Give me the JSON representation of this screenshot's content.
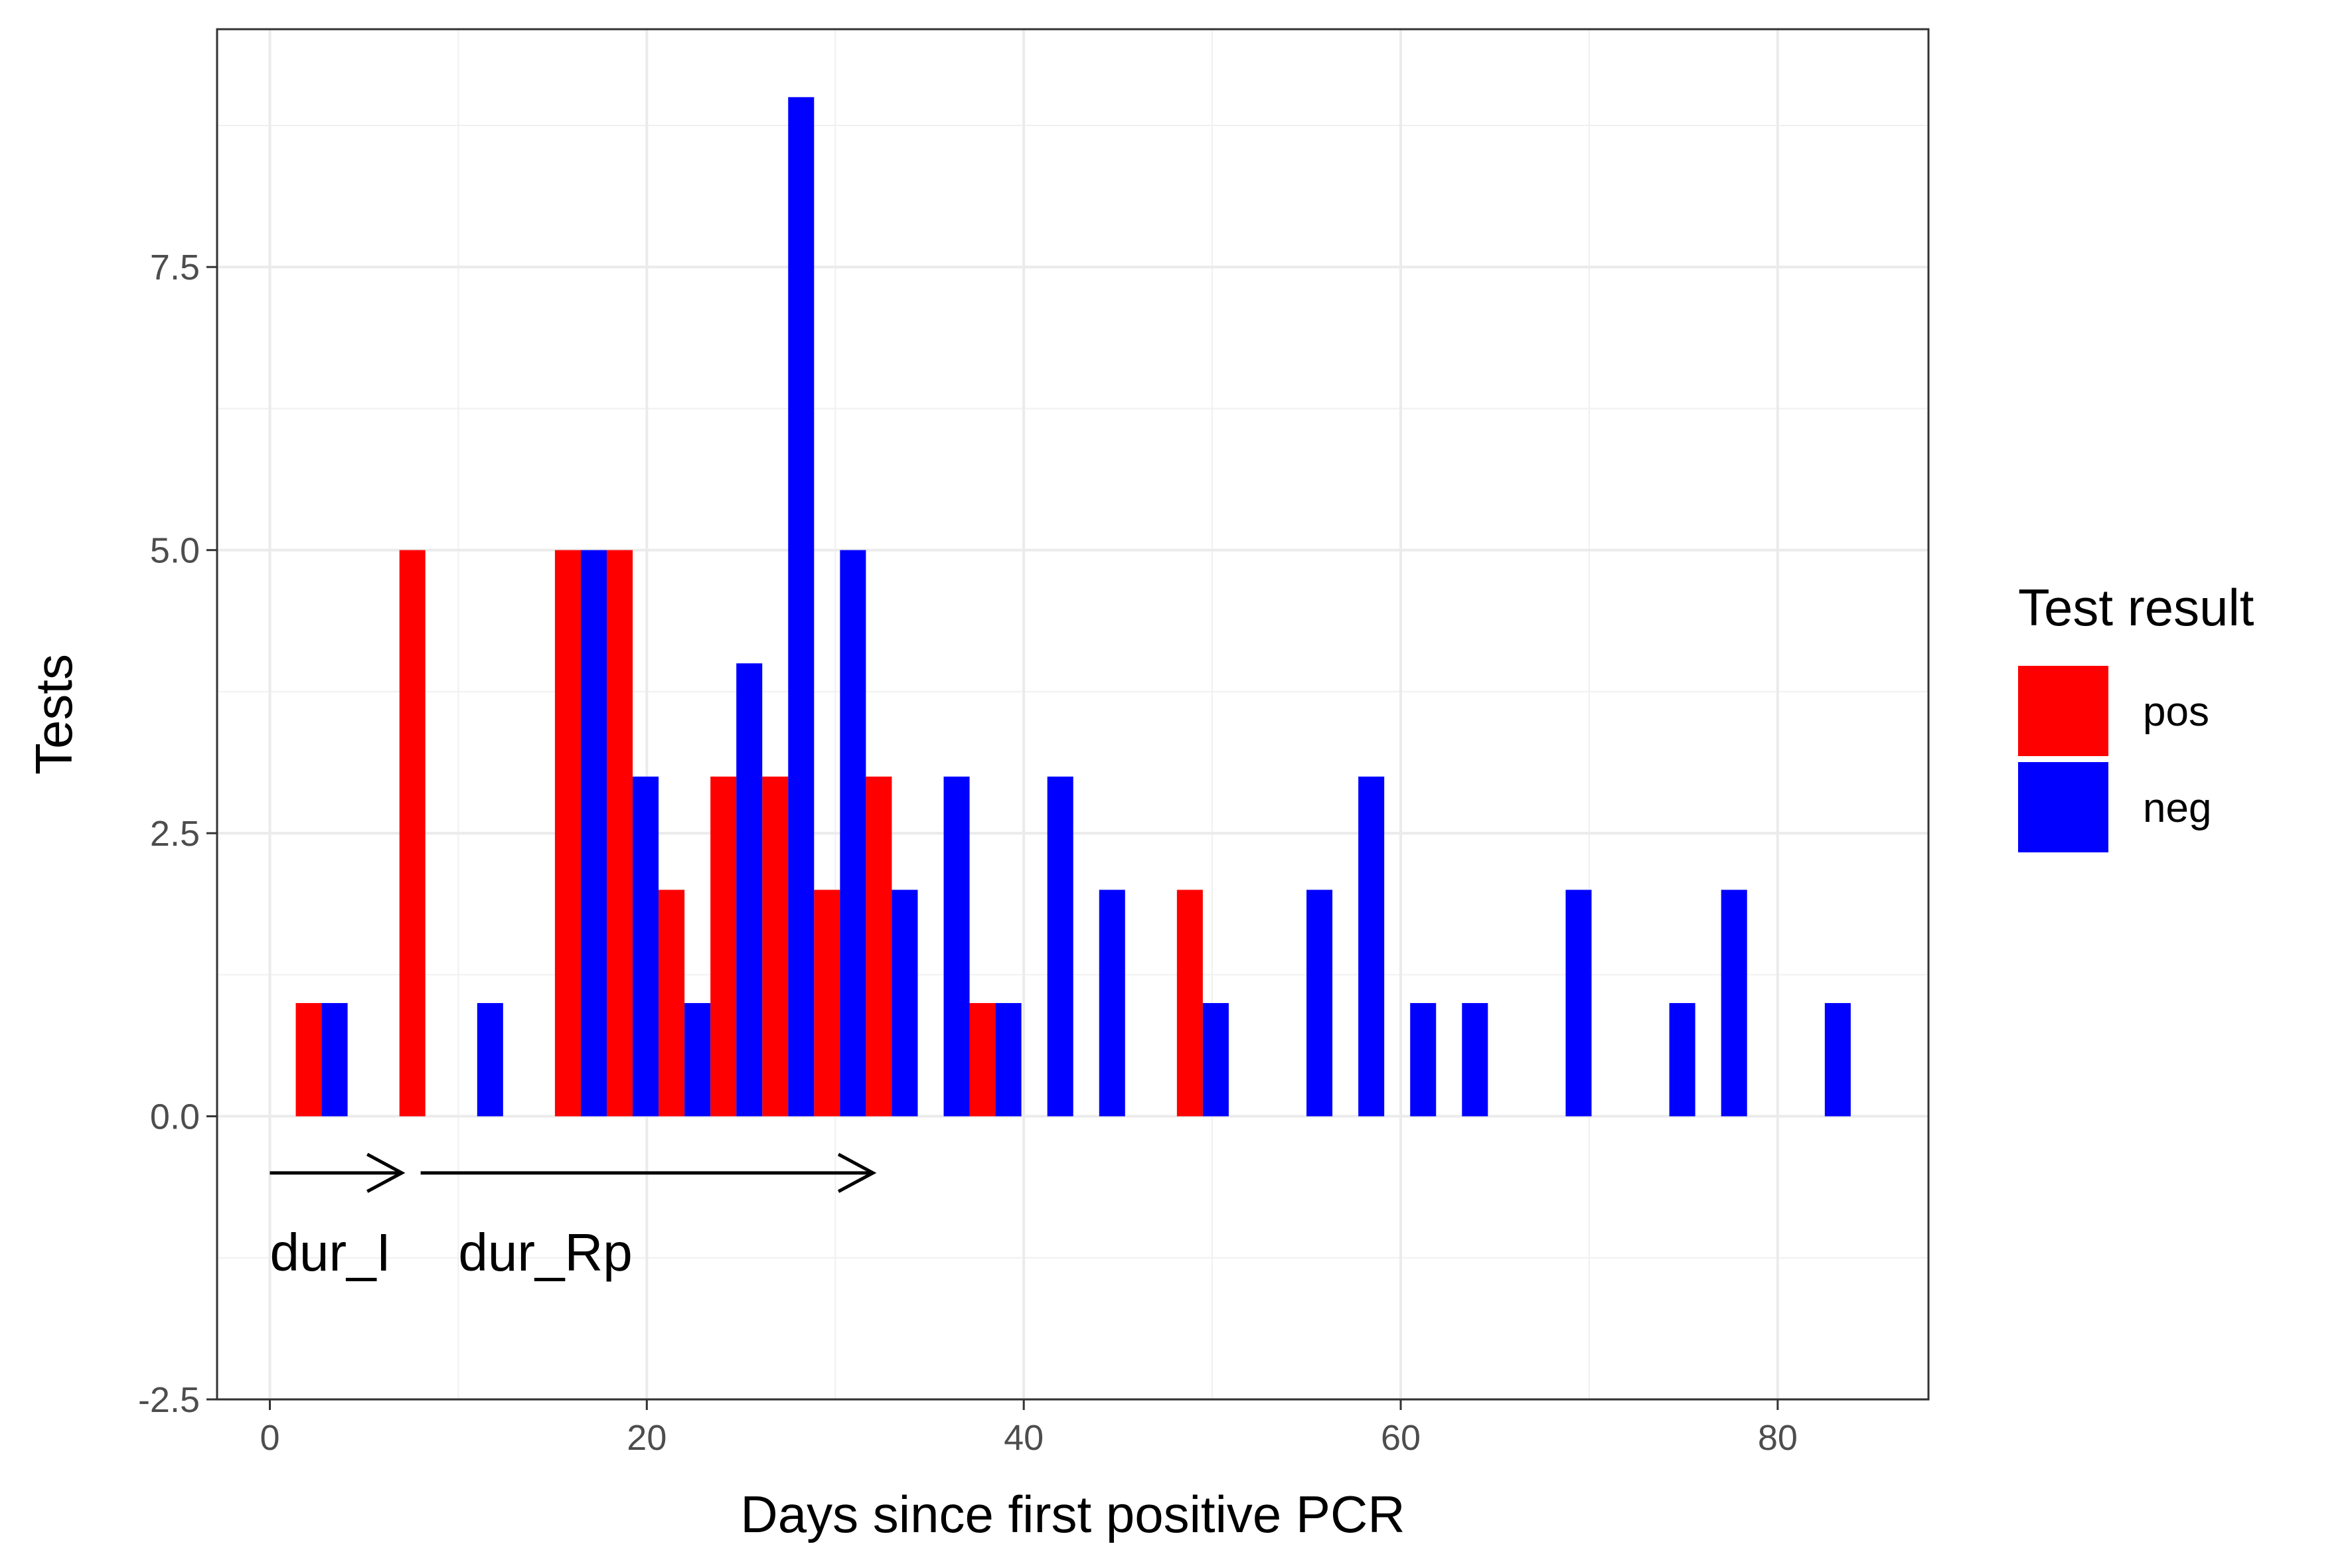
{
  "chart_data": {
    "type": "bar",
    "xlabel": "Days since first positive PCR",
    "ylabel": "Tests",
    "xlim": [
      -2.8,
      88
    ],
    "ylim": [
      -2.5,
      9.6
    ],
    "x_ticks": [
      0,
      20,
      40,
      60,
      80
    ],
    "x_tick_labels": [
      "0",
      "20",
      "40",
      "60",
      "80"
    ],
    "y_ticks": [
      -2.5,
      0.0,
      2.5,
      5.0,
      7.5
    ],
    "y_tick_labels": [
      "-2.5",
      "0.0",
      "2.5",
      "5.0",
      "7.5"
    ],
    "grid": true,
    "bin_width": 2.75,
    "legend": {
      "title": "Test result",
      "position": "right",
      "entries": [
        {
          "label": "pos",
          "color": "#ff0000"
        },
        {
          "label": "neg",
          "color": "#0000ff"
        }
      ]
    },
    "series": [
      {
        "name": "pos",
        "color": "#ff0000",
        "points": [
          {
            "x": 2.75,
            "y": 1
          },
          {
            "x": 8.25,
            "y": 5
          },
          {
            "x": 16.5,
            "y": 5
          },
          {
            "x": 19.25,
            "y": 5
          },
          {
            "x": 22,
            "y": 2
          },
          {
            "x": 24.75,
            "y": 3
          },
          {
            "x": 27.5,
            "y": 3
          },
          {
            "x": 30.25,
            "y": 2
          },
          {
            "x": 33,
            "y": 3
          },
          {
            "x": 38.5,
            "y": 1
          },
          {
            "x": 49.5,
            "y": 2
          }
        ]
      },
      {
        "name": "neg",
        "color": "#0000ff",
        "points": [
          {
            "x": 2.75,
            "y": 1
          },
          {
            "x": 11,
            "y": 1
          },
          {
            "x": 16.5,
            "y": 5
          },
          {
            "x": 19.25,
            "y": 3
          },
          {
            "x": 22,
            "y": 1
          },
          {
            "x": 24.75,
            "y": 4
          },
          {
            "x": 27.5,
            "y": 9
          },
          {
            "x": 30.25,
            "y": 5
          },
          {
            "x": 33,
            "y": 2
          },
          {
            "x": 35.75,
            "y": 3
          },
          {
            "x": 38.5,
            "y": 1
          },
          {
            "x": 41.25,
            "y": 3
          },
          {
            "x": 44,
            "y": 2
          },
          {
            "x": 49.5,
            "y": 1
          },
          {
            "x": 55,
            "y": 2
          },
          {
            "x": 57.75,
            "y": 3
          },
          {
            "x": 60.5,
            "y": 1
          },
          {
            "x": 63.25,
            "y": 1
          },
          {
            "x": 68.75,
            "y": 2
          },
          {
            "x": 74.25,
            "y": 1
          },
          {
            "x": 77,
            "y": 2
          },
          {
            "x": 82.5,
            "y": 1
          }
        ]
      }
    ],
    "annotations": [
      {
        "label": "dur_I",
        "x_start": 0,
        "x_end": 7,
        "y": -0.5,
        "label_x": 0,
        "label_y": -1.2
      },
      {
        "label": "dur_Rp",
        "x_start": 8,
        "x_end": 32,
        "y": -0.5,
        "label_x": 10,
        "label_y": -1.2
      }
    ]
  }
}
